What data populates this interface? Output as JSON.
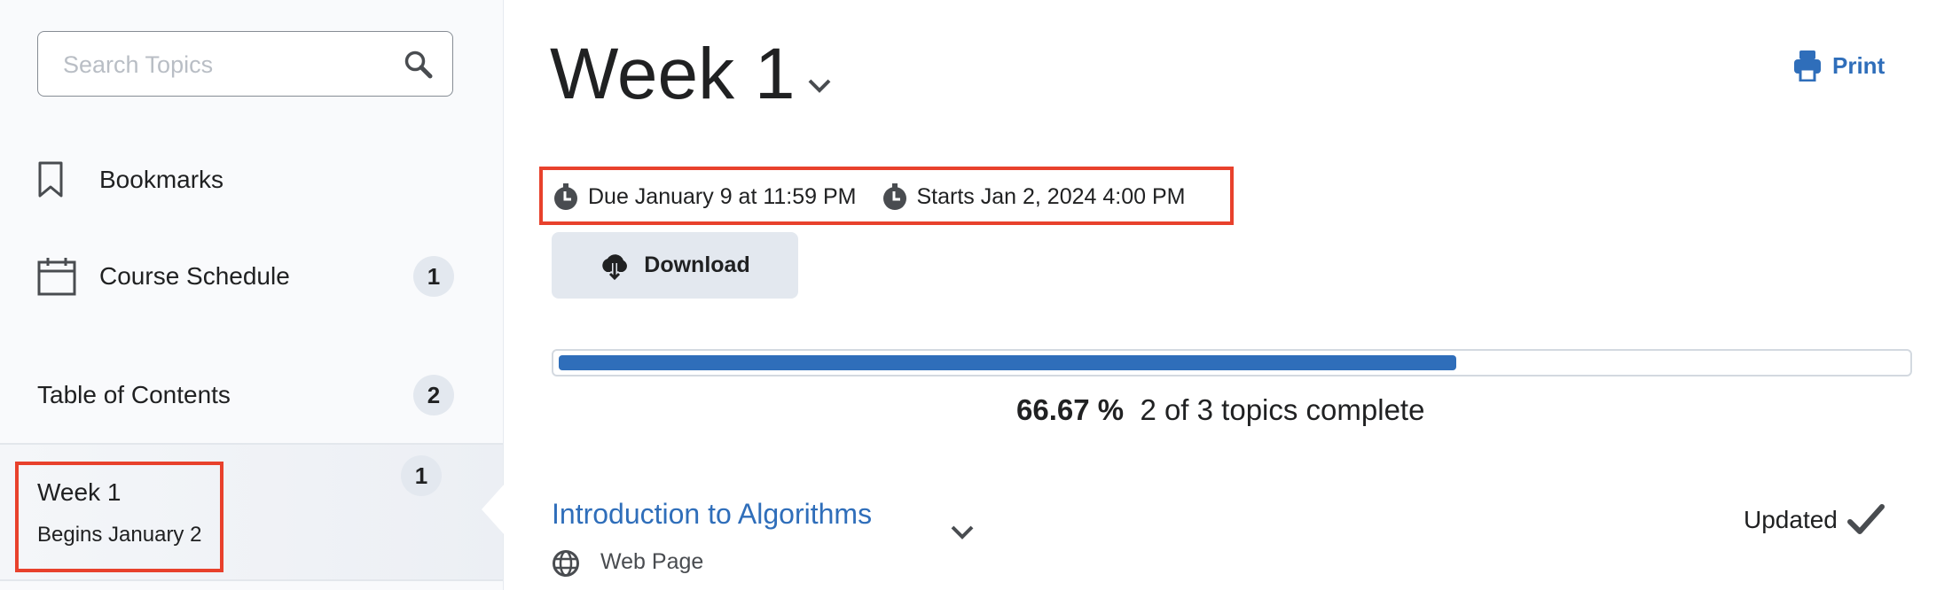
{
  "sidebar": {
    "search_placeholder": "Search Topics",
    "bookmarks_label": "Bookmarks",
    "course_schedule_label": "Course Schedule",
    "course_schedule_count": "1",
    "toc_label": "Table of Contents",
    "toc_count": "2",
    "selected_module": {
      "title": "Week 1",
      "subtitle": "Begins January 2",
      "count": "1"
    }
  },
  "main": {
    "title": "Week 1",
    "print_label": "Print",
    "due": "Due January 9 at 11:59 PM",
    "starts": "Starts Jan 2, 2024 4:00 PM",
    "download_label": "Download",
    "progress": {
      "percent": 66.67,
      "percent_label": "66.67 %",
      "summary": "2 of 3 topics complete"
    },
    "topics": [
      {
        "title": "Introduction to Algorithms",
        "type": "Web Page",
        "status": "Updated"
      }
    ]
  },
  "colors": {
    "accent": "#2f6eba",
    "highlight": "#e8412c",
    "progress_fill": "#2f6eba"
  }
}
